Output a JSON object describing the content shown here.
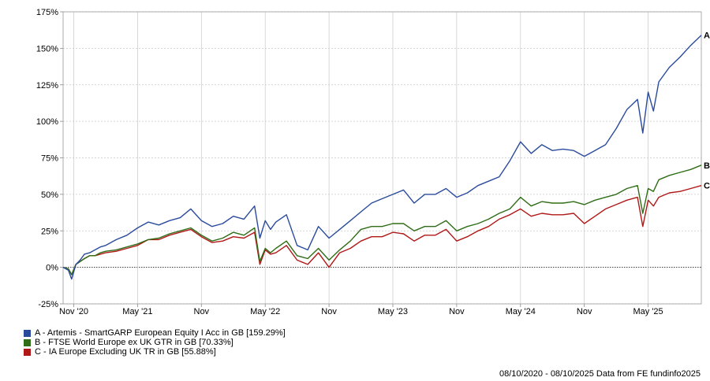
{
  "chart_data": {
    "type": "line",
    "y_ticks": [
      -25,
      0,
      25,
      50,
      75,
      100,
      125,
      150,
      175
    ],
    "y_tick_labels": [
      "-25%",
      "0%",
      "25%",
      "50%",
      "75%",
      "100%",
      "125%",
      "150%",
      "175%"
    ],
    "ylim": [
      -25,
      175
    ],
    "x_tick_labels": [
      "Nov '20",
      "May '21",
      "Nov",
      "May '22",
      "Nov",
      "May '23",
      "Nov",
      "May '24",
      "Nov",
      "May '25"
    ],
    "x_tick_months": [
      1,
      7,
      13,
      19,
      25,
      31,
      37,
      43,
      49,
      55
    ],
    "xlim_months": [
      0,
      60
    ],
    "x_unit": "months since 08/10/2020",
    "grid": true,
    "legend_position": "bottom-left",
    "series": [
      {
        "id": "A",
        "name": "A - Artemis - SmartGARP European Equity I Acc in GB [159.29%]",
        "color": "#2a4b9b",
        "x": [
          0,
          0.5,
          0.8,
          1.2,
          1.6,
          2,
          2.5,
          3,
          3.5,
          4,
          5,
          6,
          7,
          8,
          9,
          10,
          11,
          12,
          13,
          14,
          15,
          16,
          17,
          18,
          18.5,
          19,
          19.5,
          20,
          21,
          22,
          23,
          24,
          25,
          26,
          27,
          28,
          29,
          30,
          31,
          32,
          33,
          34,
          35,
          36,
          37,
          38,
          39,
          40,
          41,
          42,
          43,
          44,
          45,
          46,
          47,
          48,
          49,
          50,
          51,
          52,
          53,
          54,
          54.5,
          55,
          55.5,
          56,
          57,
          58,
          59,
          60
        ],
        "y": [
          0,
          -2,
          -8,
          2,
          5,
          9,
          10,
          12,
          14,
          15,
          19,
          22,
          27,
          31,
          29,
          32,
          34,
          40,
          32,
          28,
          30,
          35,
          33,
          42,
          20,
          32,
          26,
          31,
          36,
          15,
          12,
          28,
          20,
          26,
          32,
          38,
          44,
          47,
          50,
          53,
          44,
          50,
          50,
          54,
          48,
          51,
          56,
          59,
          62,
          73,
          86,
          78,
          84,
          80,
          81,
          80,
          76,
          80,
          84,
          95,
          108,
          115,
          92,
          120,
          107,
          127,
          137,
          144,
          152,
          159
        ]
      },
      {
        "id": "B",
        "name": "B - FTSE World Europe ex UK GTR in GB [70.33%]",
        "color": "#2f6d16",
        "x": [
          0,
          0.5,
          0.8,
          1.2,
          1.6,
          2,
          2.5,
          3,
          3.5,
          4,
          5,
          6,
          7,
          8,
          9,
          10,
          11,
          12,
          13,
          14,
          15,
          16,
          17,
          18,
          18.5,
          19,
          19.5,
          20,
          21,
          22,
          23,
          24,
          25,
          26,
          27,
          28,
          29,
          30,
          31,
          32,
          33,
          34,
          35,
          36,
          37,
          38,
          39,
          40,
          41,
          42,
          43,
          44,
          45,
          46,
          47,
          48,
          49,
          50,
          51,
          52,
          53,
          54,
          54.5,
          55,
          55.5,
          56,
          57,
          58,
          59,
          60
        ],
        "y": [
          0,
          -1,
          -5,
          2,
          4,
          6,
          8,
          8,
          10,
          11,
          12,
          14,
          16,
          19,
          20,
          23,
          25,
          27,
          22,
          18,
          20,
          24,
          22,
          27,
          4,
          13,
          10,
          13,
          18,
          8,
          6,
          13,
          5,
          12,
          18,
          26,
          28,
          28,
          30,
          30,
          25,
          28,
          28,
          32,
          25,
          28,
          30,
          33,
          37,
          40,
          48,
          42,
          45,
          44,
          44,
          45,
          43,
          46,
          48,
          50,
          54,
          56,
          37,
          54,
          52,
          60,
          63,
          65,
          67,
          70
        ]
      },
      {
        "id": "C",
        "name": "C - IA Europe Excluding UK TR in GB [55.88%]",
        "color": "#b01818",
        "x": [
          0,
          0.5,
          0.8,
          1.2,
          1.6,
          2,
          2.5,
          3,
          3.5,
          4,
          5,
          6,
          7,
          8,
          9,
          10,
          11,
          12,
          13,
          14,
          15,
          16,
          17,
          18,
          18.5,
          19,
          19.5,
          20,
          21,
          22,
          23,
          24,
          25,
          26,
          27,
          28,
          29,
          30,
          31,
          32,
          33,
          34,
          35,
          36,
          37,
          38,
          39,
          40,
          41,
          42,
          43,
          44,
          45,
          46,
          47,
          48,
          49,
          50,
          51,
          52,
          53,
          54,
          54.5,
          55,
          55.5,
          56,
          57,
          58,
          59,
          60
        ],
        "y": [
          0,
          -1,
          -5,
          2,
          4,
          6,
          8,
          8,
          9,
          10,
          11,
          13,
          15,
          19,
          19,
          22,
          24,
          26,
          21,
          17,
          18,
          21,
          20,
          24,
          2,
          12,
          9,
          10,
          15,
          5,
          2,
          10,
          0,
          10,
          13,
          18,
          21,
          21,
          24,
          23,
          18,
          22,
          22,
          26,
          18,
          21,
          25,
          28,
          33,
          36,
          40,
          35,
          37,
          36,
          36,
          37,
          30,
          35,
          40,
          43,
          46,
          48,
          28,
          46,
          42,
          48,
          51,
          52,
          54,
          56
        ]
      }
    ]
  },
  "footer": {
    "text": "08/10/2020 - 08/10/2025 Data from FE fundinfo2025"
  }
}
